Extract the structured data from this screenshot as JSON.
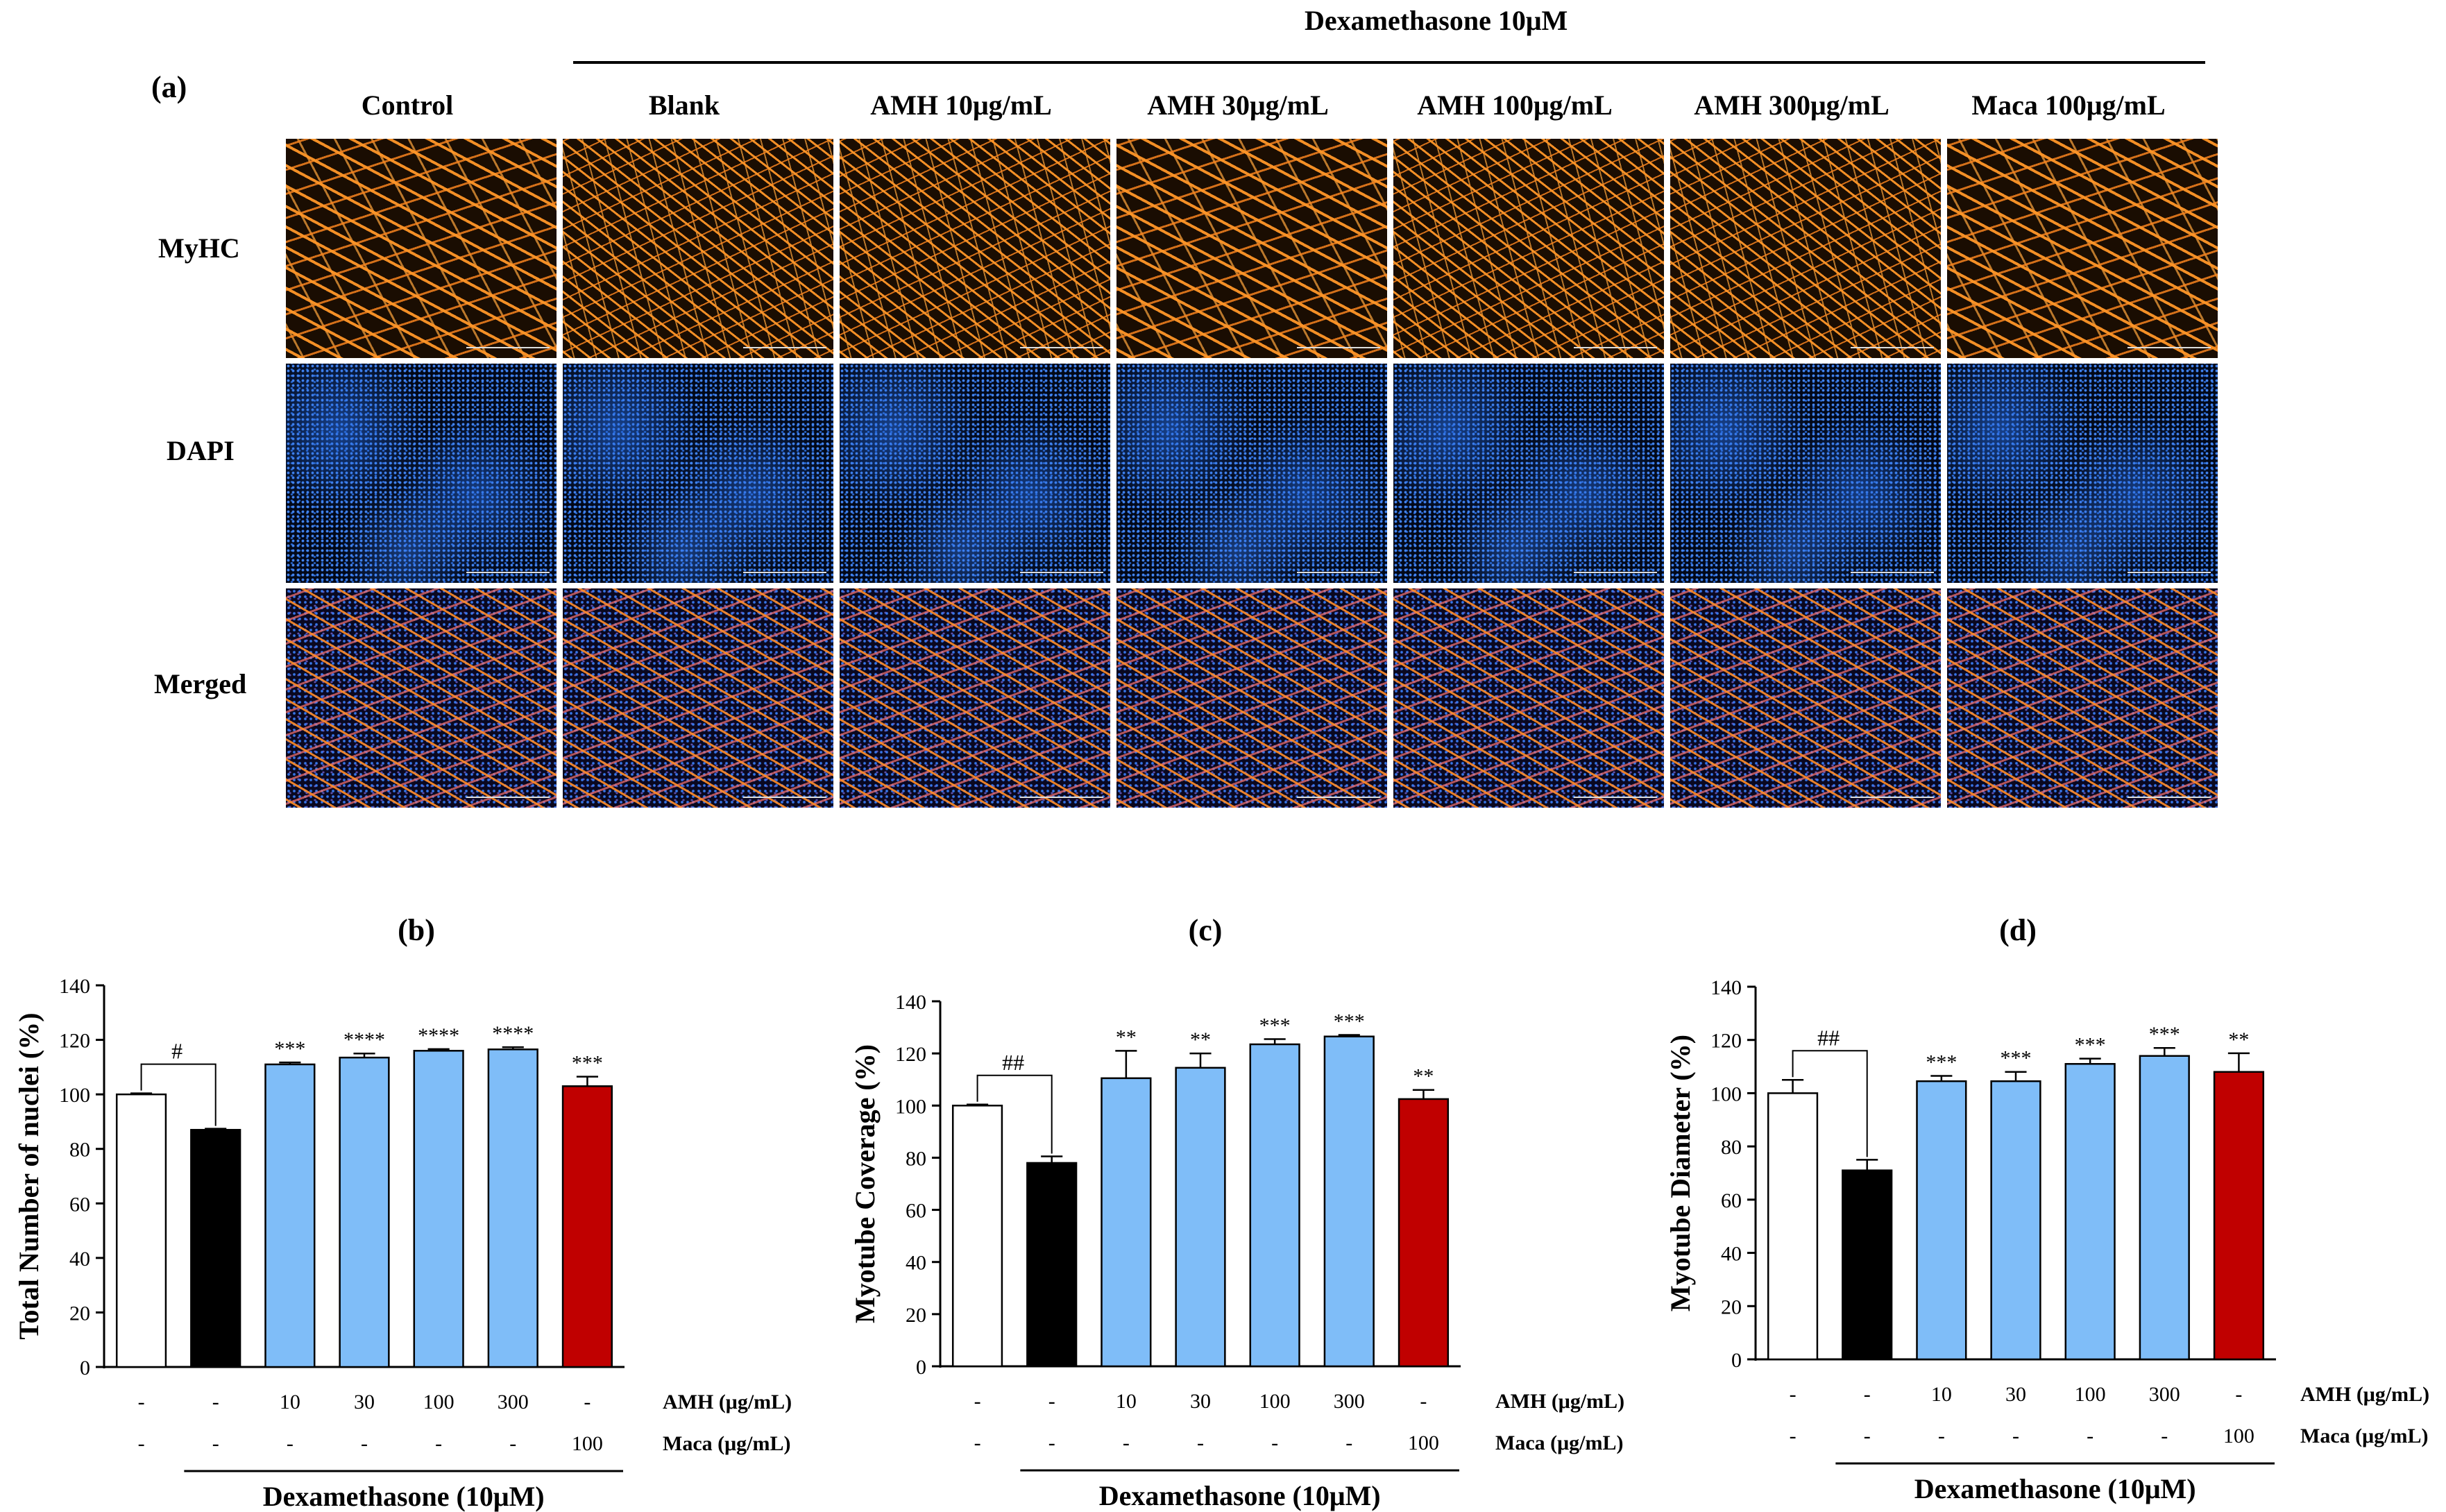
{
  "panel_a": {
    "label": "(a)",
    "header": "Dexamethasone 10μM",
    "columns": [
      "Control",
      "Blank",
      "AMH 10μg/mL",
      "AMH 30μg/mL",
      "AMH 100μg/mL",
      "AMH 300μg/mL",
      "Maca 100μg/mL"
    ],
    "rows": [
      "MyHC",
      "DAPI",
      "Merged"
    ]
  },
  "chart_data": [
    {
      "type": "bar",
      "panel_label": "(b)",
      "title": "",
      "ylabel": "Total Number of nuclei (%)",
      "xlabel": "Dexamethasone (10μM)",
      "ylim": [
        0,
        140
      ],
      "yticks": [
        0,
        20,
        40,
        60,
        80,
        100,
        120,
        140
      ],
      "categories": [
        "Control",
        "Blank",
        "AMH 10",
        "AMH 30",
        "AMH 100",
        "AMH 300",
        "Maca 100"
      ],
      "values": [
        100,
        87,
        111,
        113.5,
        116,
        116.5,
        103
      ],
      "errors": [
        0.4,
        0.4,
        0.7,
        1.5,
        0.6,
        0.8,
        3.5
      ],
      "colors": [
        "#ffffff",
        "#000000",
        "#7fbdf8",
        "#7fbdf8",
        "#7fbdf8",
        "#7fbdf8",
        "#c00000"
      ],
      "significance": [
        "",
        "",
        "***",
        "****",
        "****",
        "****",
        "***"
      ],
      "bracket_label": "#",
      "amh_row_label": "AMH (μg/mL)",
      "amh_row": [
        "-",
        "-",
        "10",
        "30",
        "100",
        "300",
        "-"
      ],
      "maca_row_label": "Maca (μg/mL)",
      "maca_row": [
        "-",
        "-",
        "-",
        "-",
        "-",
        "-",
        "100"
      ]
    },
    {
      "type": "bar",
      "panel_label": "(c)",
      "title": "",
      "ylabel": "Myotube Coverage (%)",
      "xlabel": "Dexamethasone (10μM)",
      "ylim": [
        0,
        140
      ],
      "yticks": [
        0,
        20,
        40,
        60,
        80,
        100,
        120,
        140
      ],
      "categories": [
        "Control",
        "Blank",
        "AMH 10",
        "AMH 30",
        "AMH 100",
        "AMH 300",
        "Maca 100"
      ],
      "values": [
        100,
        78,
        110.5,
        114.5,
        123.5,
        126.5,
        102.5
      ],
      "errors": [
        0.4,
        2.5,
        10.5,
        5.5,
        2,
        0.6,
        3.5
      ],
      "colors": [
        "#ffffff",
        "#000000",
        "#7fbdf8",
        "#7fbdf8",
        "#7fbdf8",
        "#7fbdf8",
        "#c00000"
      ],
      "significance": [
        "",
        "",
        "**",
        "**",
        "***",
        "***",
        "**"
      ],
      "bracket_label": "##",
      "amh_row_label": "AMH (μg/mL)",
      "amh_row": [
        "-",
        "-",
        "10",
        "30",
        "100",
        "300",
        "-"
      ],
      "maca_row_label": "Maca (μg/mL)",
      "maca_row": [
        "-",
        "-",
        "-",
        "-",
        "-",
        "-",
        "100"
      ]
    },
    {
      "type": "bar",
      "panel_label": "(d)",
      "title": "",
      "ylabel": "Myotube Diameter (%)",
      "xlabel": "Dexamethasone (10μM)",
      "ylim": [
        0,
        140
      ],
      "yticks": [
        0,
        20,
        40,
        60,
        80,
        100,
        120,
        140
      ],
      "categories": [
        "Control",
        "Blank",
        "AMH 10",
        "AMH 30",
        "AMH 100",
        "AMH 300",
        "Maca 100"
      ],
      "values": [
        100,
        71,
        104.5,
        104.5,
        111,
        114,
        108
      ],
      "errors": [
        5,
        4,
        2,
        3.5,
        2,
        3,
        7
      ],
      "colors": [
        "#ffffff",
        "#000000",
        "#7fbdf8",
        "#7fbdf8",
        "#7fbdf8",
        "#7fbdf8",
        "#c00000"
      ],
      "significance": [
        "",
        "",
        "***",
        "***",
        "***",
        "***",
        "**"
      ],
      "bracket_label": "##",
      "amh_row_label": "AMH (μg/mL)",
      "amh_row": [
        "-",
        "-",
        "10",
        "30",
        "100",
        "300",
        "-"
      ],
      "maca_row_label": "Maca (μg/mL)",
      "maca_row": [
        "-",
        "-",
        "-",
        "-",
        "-",
        "-",
        "100"
      ]
    }
  ]
}
